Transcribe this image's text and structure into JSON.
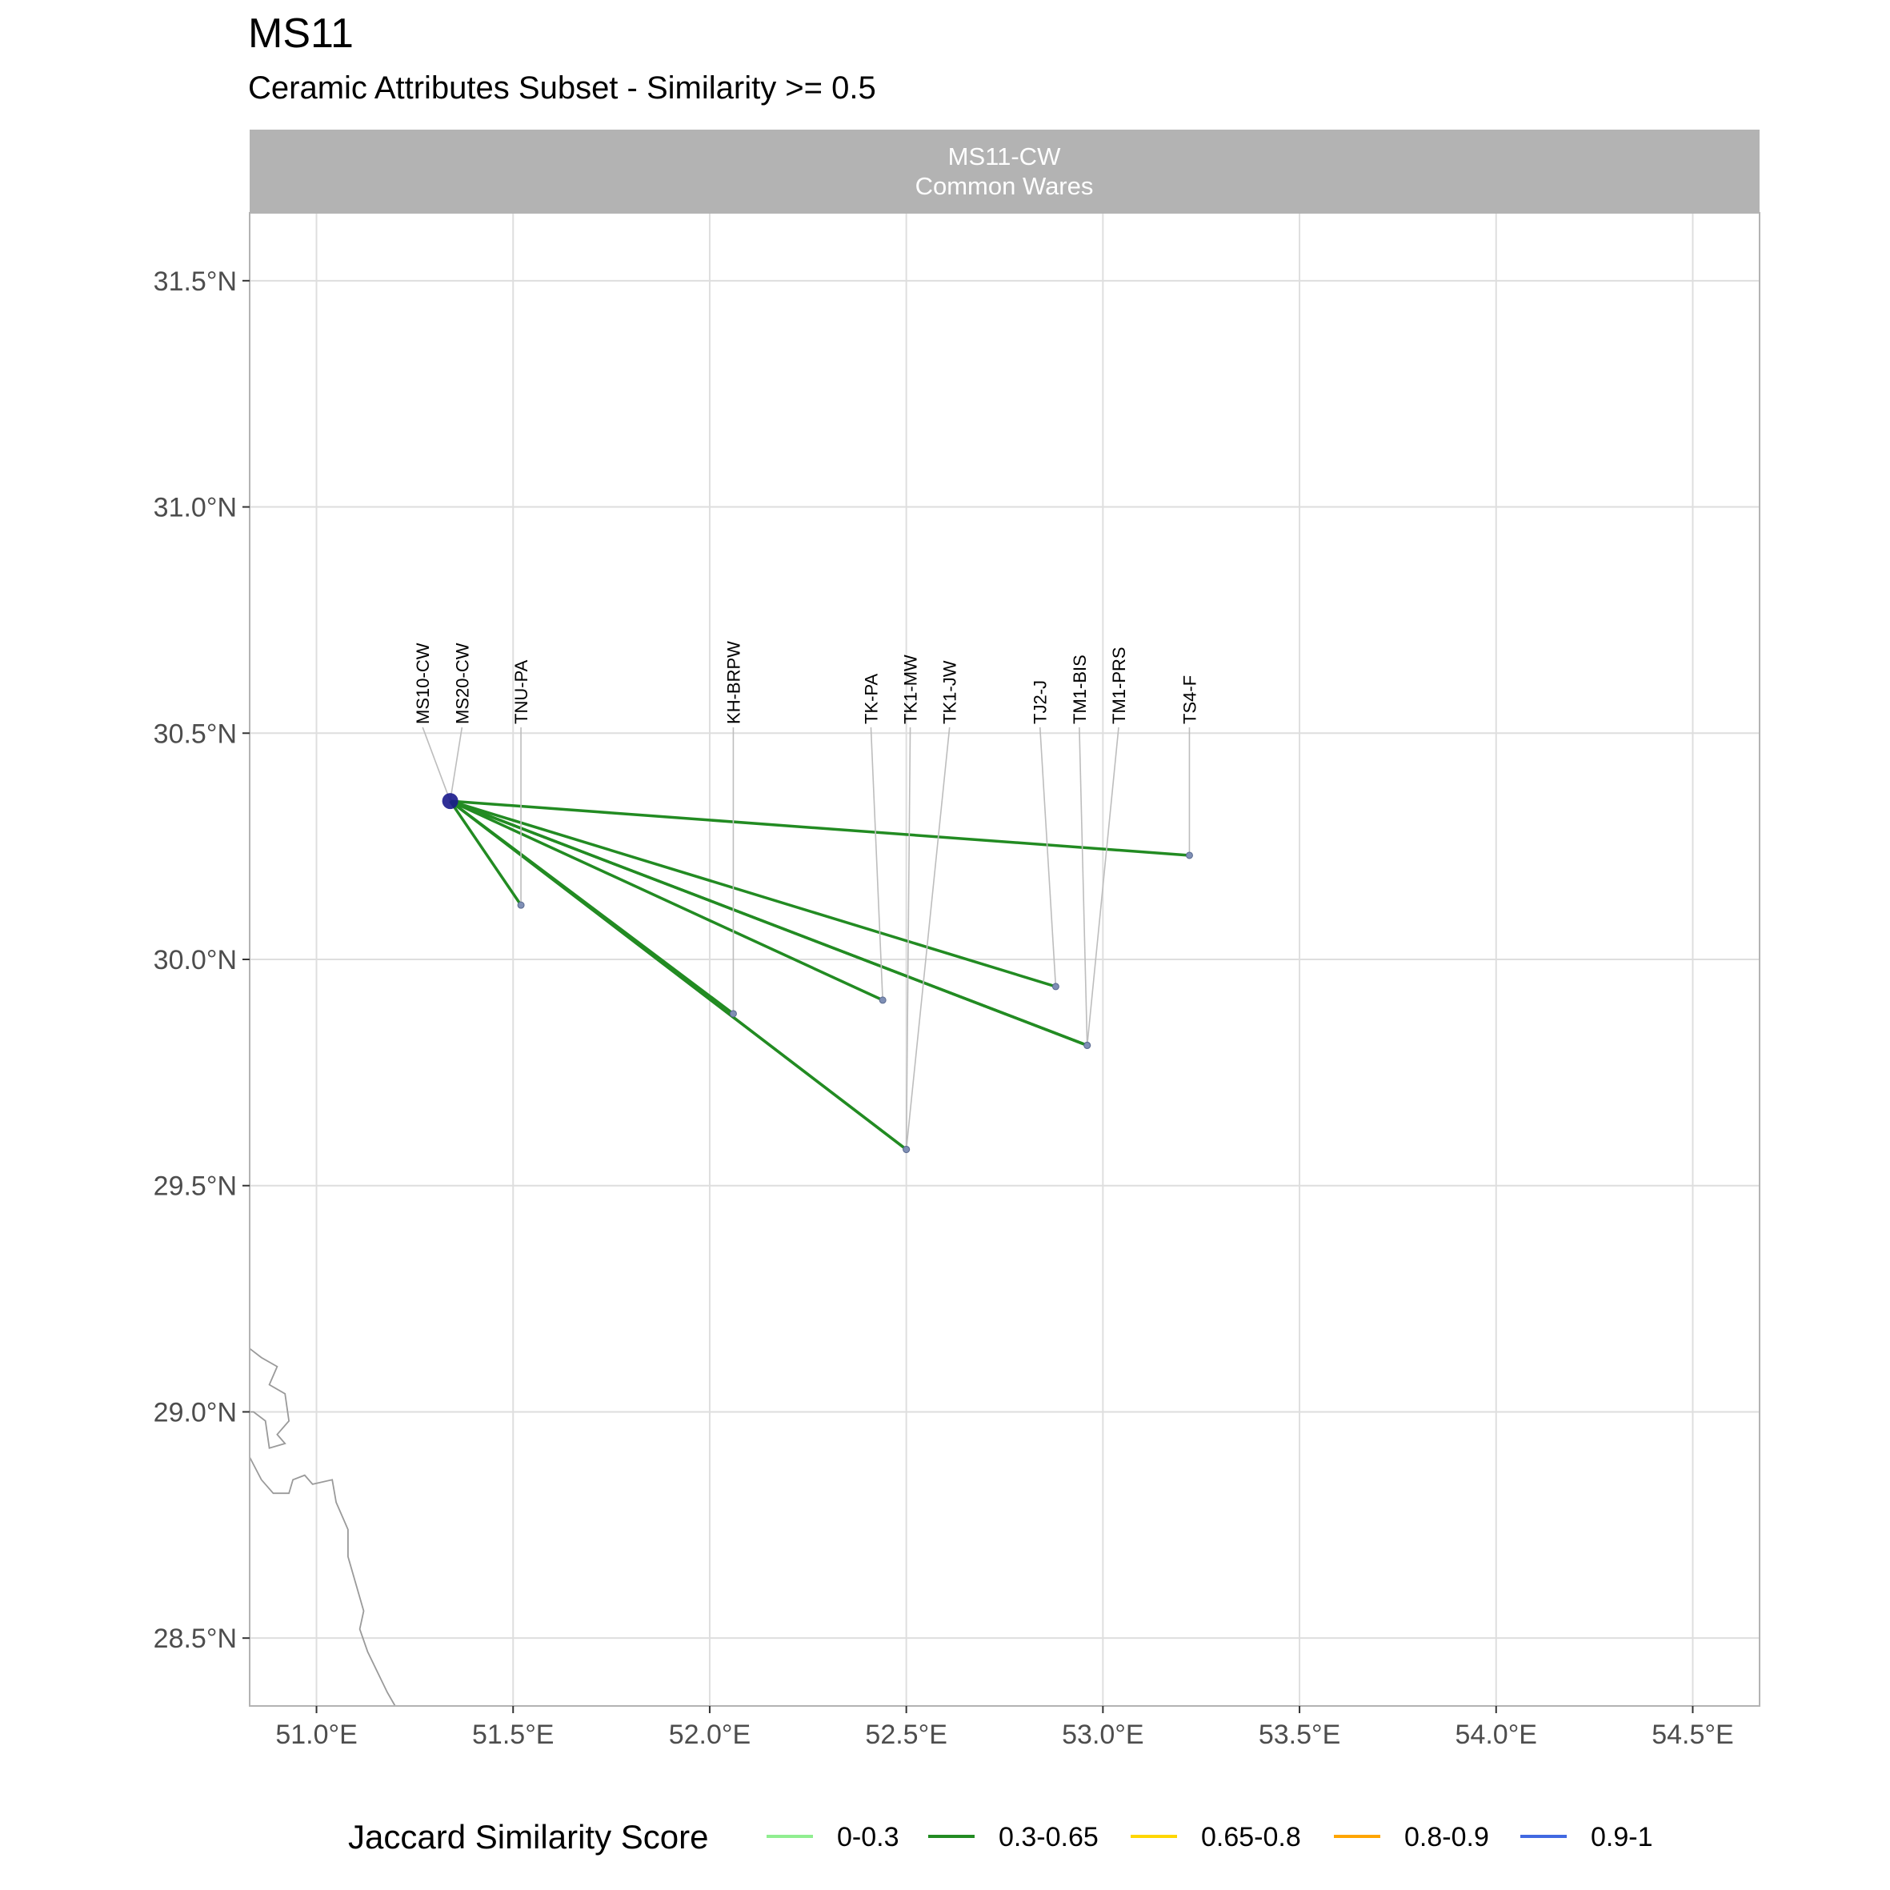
{
  "title": "MS11",
  "subtitle": "Ceramic Attributes Subset - Similarity >= 0.5",
  "facet": {
    "line1": "MS11-CW",
    "line2": "Common Wares"
  },
  "legend": {
    "title": "Jaccard Similarity Score",
    "items": [
      {
        "label": "0-0.3",
        "color": "#90EE90"
      },
      {
        "label": "0.3-0.65",
        "color": "#228B22"
      },
      {
        "label": "0.65-0.8",
        "color": "#FFD700"
      },
      {
        "label": "0.8-0.9",
        "color": "#FFA500"
      },
      {
        "label": "0.9-1",
        "color": "#4169E1"
      }
    ]
  },
  "chart_data": {
    "type": "map",
    "x_range": [
      50.83,
      54.67
    ],
    "y_range": [
      28.35,
      31.65
    ],
    "x_ticks": [
      51.0,
      51.5,
      52.0,
      52.5,
      53.0,
      53.5,
      54.0,
      54.5
    ],
    "x_tick_labels": [
      "51.0°E",
      "51.5°E",
      "52.0°E",
      "52.5°E",
      "53.0°E",
      "53.5°E",
      "54.0°E",
      "54.5°E"
    ],
    "y_ticks": [
      28.5,
      29.0,
      29.5,
      30.0,
      30.5,
      31.0,
      31.5
    ],
    "y_tick_labels": [
      "28.5°N",
      "29.0°N",
      "29.5°N",
      "30.0°N",
      "30.5°N",
      "31.0°N",
      "31.5°N"
    ],
    "grid": true,
    "legend_position": "bottom",
    "origin": {
      "lon": 51.34,
      "lat": 30.35,
      "color": "#1a1a8c"
    },
    "label_lat": 30.52,
    "sites": [
      {
        "name": "MS10-CW",
        "lon": 51.34,
        "lat": 30.35,
        "label_lon": 51.27,
        "score_class": null
      },
      {
        "name": "MS20-CW",
        "lon": 51.34,
        "lat": 30.35,
        "label_lon": 51.37,
        "score_class": null
      },
      {
        "name": "TNU-PA",
        "lon": 51.52,
        "lat": 30.12,
        "label_lon": 51.52,
        "score_class": "0.3-0.65"
      },
      {
        "name": "KH-BRPW",
        "lon": 52.06,
        "lat": 29.88,
        "label_lon": 52.06,
        "score_class": "0.3-0.65"
      },
      {
        "name": "TK-PA",
        "lon": 52.44,
        "lat": 29.91,
        "label_lon": 52.41,
        "score_class": "0.3-0.65"
      },
      {
        "name": "TK1-MW",
        "lon": 52.5,
        "lat": 29.58,
        "label_lon": 52.51,
        "score_class": "0.3-0.65"
      },
      {
        "name": "TK1-JW",
        "lon": 52.5,
        "lat": 29.58,
        "label_lon": 52.61,
        "score_class": "0.3-0.65"
      },
      {
        "name": "TJ2-J",
        "lon": 52.88,
        "lat": 29.94,
        "label_lon": 52.84,
        "score_class": "0.3-0.65"
      },
      {
        "name": "TM1-BIS",
        "lon": 52.96,
        "lat": 29.81,
        "label_lon": 52.94,
        "score_class": "0.3-0.65"
      },
      {
        "name": "TM1-PRS",
        "lon": 52.96,
        "lat": 29.81,
        "label_lon": 53.04,
        "score_class": "0.3-0.65"
      },
      {
        "name": "TS4-F",
        "lon": 53.22,
        "lat": 30.23,
        "label_lon": 53.22,
        "score_class": "0.3-0.65"
      }
    ],
    "coastline": [
      [
        [
          50.83,
          29.14
        ],
        [
          50.86,
          29.12
        ],
        [
          50.9,
          29.1
        ],
        [
          50.88,
          29.06
        ],
        [
          50.92,
          29.04
        ],
        [
          50.93,
          28.98
        ],
        [
          50.9,
          28.95
        ],
        [
          50.92,
          28.93
        ],
        [
          50.88,
          28.92
        ],
        [
          50.87,
          28.98
        ],
        [
          50.84,
          29.0
        ],
        [
          50.83,
          29.0
        ]
      ],
      [
        [
          50.83,
          28.9
        ],
        [
          50.86,
          28.85
        ],
        [
          50.89,
          28.82
        ],
        [
          50.93,
          28.82
        ],
        [
          50.94,
          28.85
        ],
        [
          50.97,
          28.86
        ],
        [
          50.99,
          28.84
        ],
        [
          51.04,
          28.85
        ],
        [
          51.05,
          28.8
        ],
        [
          51.08,
          28.74
        ],
        [
          51.08,
          28.68
        ],
        [
          51.12,
          28.56
        ],
        [
          51.11,
          28.52
        ],
        [
          51.13,
          28.47
        ],
        [
          51.18,
          28.38
        ],
        [
          51.2,
          28.35
        ]
      ]
    ]
  }
}
